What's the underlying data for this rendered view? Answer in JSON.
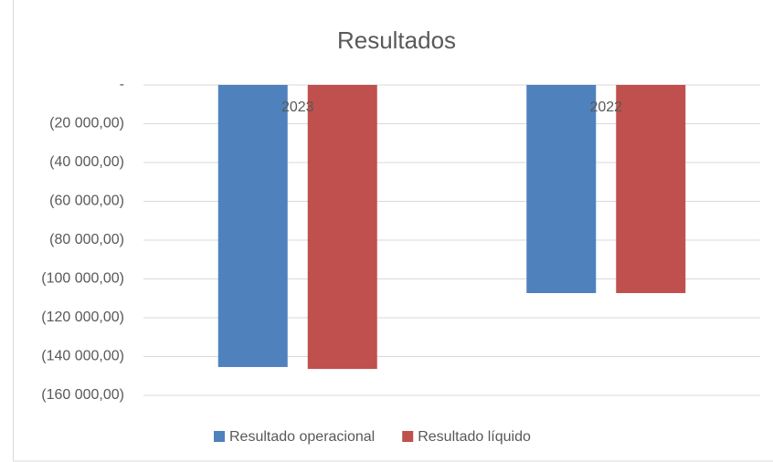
{
  "chart_data": {
    "type": "bar",
    "title": "Resultados",
    "categories": [
      "2023",
      "2022"
    ],
    "series": [
      {
        "name": "Resultado operacional",
        "color": "#4f81bd",
        "values": [
          -145400,
          -107300
        ]
      },
      {
        "name": "Resultado líquido",
        "color": "#c0504d",
        "values": [
          -146400,
          -107300
        ]
      }
    ],
    "ylim": [
      -160000,
      0
    ],
    "yticks": [
      {
        "value": 0,
        "label": "-"
      },
      {
        "value": -20000,
        "label": "(20 000,00)"
      },
      {
        "value": -40000,
        "label": "(40 000,00)"
      },
      {
        "value": -60000,
        "label": "(60 000,00)"
      },
      {
        "value": -80000,
        "label": "(80 000,00)"
      },
      {
        "value": -100000,
        "label": "(100 000,00)"
      },
      {
        "value": -120000,
        "label": "(120 000,00)"
      },
      {
        "value": -140000,
        "label": "(140 000,00)"
      },
      {
        "value": -160000,
        "label": "(160 000,00)"
      }
    ],
    "grid": true,
    "legend": "bottom"
  }
}
